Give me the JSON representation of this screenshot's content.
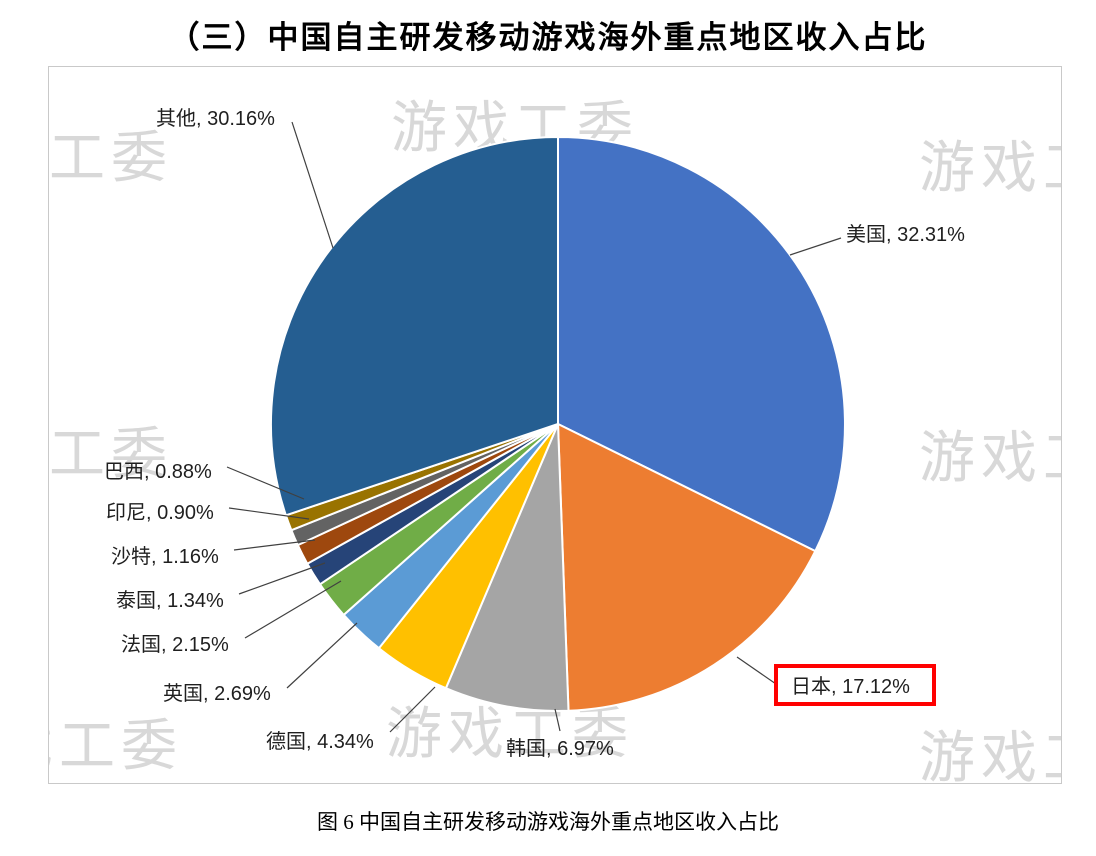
{
  "page": {
    "heading": "（三）中国自主研发移动游戏海外重点地区收入占比",
    "figure_caption": "图 6 中国自主研发移动游戏海外重点地区收入占比"
  },
  "watermark": {
    "text": "游戏工委"
  },
  "chart_data": {
    "type": "pie",
    "title": "（三）中国自主研发移动游戏海外重点地区收入占比",
    "caption": "图 6 中国自主研发移动游戏海外重点地区收入占比",
    "unit": "%",
    "start_angle_deg": 0,
    "direction": "clockwise",
    "data_label_format": "{label}, {value}%",
    "legend": "none",
    "highlight_box_color": "#FF0000",
    "slices": [
      {
        "label": "美国",
        "value": 32.31,
        "color": "#4472C4",
        "highlighted": false
      },
      {
        "label": "日本",
        "value": 17.12,
        "color": "#ED7D31",
        "highlighted": true
      },
      {
        "label": "韩国",
        "value": 6.97,
        "color": "#A5A5A5",
        "highlighted": false
      },
      {
        "label": "德国",
        "value": 4.34,
        "color": "#FFC000",
        "highlighted": false
      },
      {
        "label": "英国",
        "value": 2.69,
        "color": "#5B9BD5",
        "highlighted": false
      },
      {
        "label": "法国",
        "value": 2.15,
        "color": "#70AD47",
        "highlighted": false
      },
      {
        "label": "泰国",
        "value": 1.34,
        "color": "#264478",
        "highlighted": false
      },
      {
        "label": "沙特",
        "value": 1.16,
        "color": "#9E480E",
        "highlighted": false
      },
      {
        "label": "印尼",
        "value": 0.9,
        "color": "#636363",
        "highlighted": false
      },
      {
        "label": "巴西",
        "value": 0.88,
        "color": "#997300",
        "highlighted": false
      },
      {
        "label": "其他",
        "value": 30.16,
        "color": "#255E91",
        "highlighted": false
      }
    ]
  }
}
